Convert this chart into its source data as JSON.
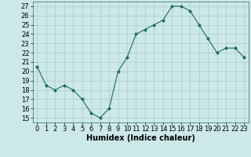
{
  "x": [
    0,
    1,
    2,
    3,
    4,
    5,
    6,
    7,
    8,
    9,
    10,
    11,
    12,
    13,
    14,
    15,
    16,
    17,
    18,
    19,
    20,
    21,
    22,
    23
  ],
  "y": [
    20.5,
    18.5,
    18.0,
    18.5,
    18.0,
    17.0,
    15.5,
    15.0,
    16.0,
    20.0,
    21.5,
    24.0,
    24.5,
    25.0,
    25.5,
    27.0,
    27.0,
    26.5,
    25.0,
    23.5,
    22.0,
    22.5,
    22.5,
    21.5
  ],
  "line_color": "#1a6b5a",
  "marker": "D",
  "marker_size": 2.0,
  "bg_color": "#cce8e8",
  "grid_color": "#aacccc",
  "xlabel": "Humidex (Indice chaleur)",
  "ylabel_ticks": [
    15,
    16,
    17,
    18,
    19,
    20,
    21,
    22,
    23,
    24,
    25,
    26,
    27
  ],
  "xlabel_ticks": [
    0,
    1,
    2,
    3,
    4,
    5,
    6,
    7,
    8,
    9,
    10,
    11,
    12,
    13,
    14,
    15,
    16,
    17,
    18,
    19,
    20,
    21,
    22,
    23
  ],
  "xlim": [
    -0.5,
    23.5
  ],
  "ylim": [
    14.5,
    27.5
  ],
  "xlabel_fontsize": 7,
  "tick_fontsize": 6
}
